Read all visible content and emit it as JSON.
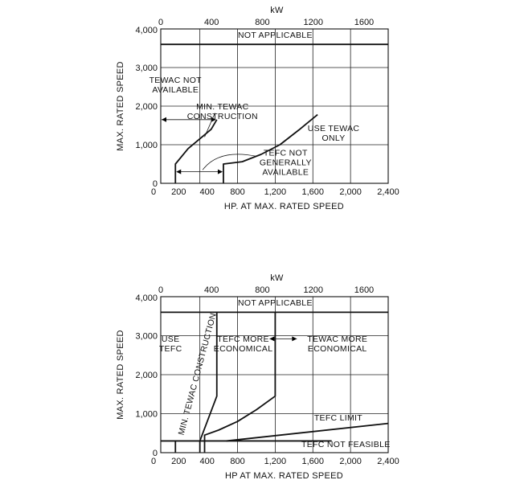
{
  "chart_data": [
    {
      "type": "line",
      "xlabel": "HP. AT MAX. RATED SPEED",
      "ylabel": "MAX. RATED SPEED",
      "x2label": "kW",
      "xlim": [
        0,
        2400
      ],
      "ylim": [
        0,
        4000
      ],
      "x2lim": [
        0,
        1790
      ],
      "x_ticks": [
        {
          "value": 0,
          "label": "0"
        },
        {
          "value": 200,
          "label": "200"
        },
        {
          "value": 400,
          "label": "400"
        },
        {
          "value": 800,
          "label": "800"
        },
        {
          "value": 1200,
          "label": "1,200"
        },
        {
          "value": 1600,
          "label": "1,600"
        },
        {
          "value": 2000,
          "label": "2,000"
        },
        {
          "value": 2400,
          "label": "2,400"
        }
      ],
      "y_ticks": [
        {
          "value": 0,
          "label": "0"
        },
        {
          "value": 1000,
          "label": "1,000"
        },
        {
          "value": 2000,
          "label": "2,000"
        },
        {
          "value": 3000,
          "label": "3,000"
        },
        {
          "value": 4000,
          "label": "4,000"
        }
      ],
      "x2_ticks": [
        {
          "value": 0,
          "label": "0"
        },
        {
          "value": 400,
          "label": "400"
        },
        {
          "value": 800,
          "label": "800"
        },
        {
          "value": 1200,
          "label": "1200"
        },
        {
          "value": 1600,
          "label": "1600"
        }
      ],
      "grid": true,
      "series": [
        {
          "x": [
            150,
            150,
            280,
            520,
            580
          ],
          "y": [
            0,
            500,
            900,
            1400,
            1650
          ]
        },
        {
          "x": [
            650,
            650,
            850,
            1050,
            1250,
            1450,
            1650
          ],
          "y": [
            0,
            500,
            560,
            750,
            1000,
            1380,
            1780
          ]
        },
        {
          "x": [
            0,
            2400
          ],
          "y": [
            3600,
            3600
          ]
        }
      ],
      "annotations": [
        {
          "text": [
            "NOT APPLICABLE"
          ],
          "x": 1200,
          "y": 3770
        },
        {
          "text": [
            "TEWAC NOT",
            "AVAILABLE"
          ],
          "x": 150,
          "y": 2600
        },
        {
          "text": [
            "MIN. TEWAC",
            "CONSTRUCTION"
          ],
          "x": 640,
          "y": 1920
        },
        {
          "text": [
            "USE TEWAC",
            "ONLY"
          ],
          "x": 1820,
          "y": 1350
        },
        {
          "text": [
            "TEFC NOT",
            "GENERALLY",
            "AVAILABLE"
          ],
          "x": 1310,
          "y": 720
        }
      ]
    },
    {
      "type": "line",
      "xlabel": "HP AT MAX. RATED SPEED",
      "ylabel": "MAX. RATED SPEED",
      "x2label": "kW",
      "xlim": [
        0,
        2400
      ],
      "ylim": [
        0,
        4000
      ],
      "x2lim": [
        0,
        1790
      ],
      "x_ticks": [
        {
          "value": 0,
          "label": "0"
        },
        {
          "value": 200,
          "label": "200"
        },
        {
          "value": 400,
          "label": "400"
        },
        {
          "value": 800,
          "label": "800"
        },
        {
          "value": 1200,
          "label": "1,200"
        },
        {
          "value": 1600,
          "label": "1,600"
        },
        {
          "value": 2000,
          "label": "2,000"
        },
        {
          "value": 2400,
          "label": "2,400"
        }
      ],
      "y_ticks": [
        {
          "value": 0,
          "label": "0"
        },
        {
          "value": 1000,
          "label": "1,000"
        },
        {
          "value": 2000,
          "label": "2,000"
        },
        {
          "value": 3000,
          "label": "3,000"
        },
        {
          "value": 4000,
          "label": "4,000"
        }
      ],
      "x2_ticks": [
        {
          "value": 0,
          "label": "0"
        },
        {
          "value": 400,
          "label": "400"
        },
        {
          "value": 800,
          "label": "800"
        },
        {
          "value": 1200,
          "label": "1200"
        },
        {
          "value": 1600,
          "label": "1600"
        }
      ],
      "grid": true,
      "series": [
        {
          "x": [
            150,
            150
          ],
          "y": [
            0,
            300
          ]
        },
        {
          "x": [
            0,
            1800
          ],
          "y": [
            300,
            300
          ]
        },
        {
          "x": [
            400,
            400,
            580,
            580
          ],
          "y": [
            0,
            300,
            1450,
            3600
          ]
        },
        {
          "x": [
            450,
            450,
            600,
            800,
            1000,
            1200,
            1200,
            1200
          ],
          "y": [
            0,
            450,
            580,
            800,
            1100,
            1450,
            1650,
            3600
          ]
        },
        {
          "x": [
            680,
            2400
          ],
          "y": [
            300,
            750
          ]
        },
        {
          "x": [
            0,
            2400
          ],
          "y": [
            3600,
            3600
          ]
        }
      ],
      "annotations": [
        {
          "text": [
            "NOT APPLICABLE"
          ],
          "x": 1200,
          "y": 3770
        },
        {
          "text": [
            "USE",
            "TEFC"
          ],
          "x": 100,
          "y": 2850
        },
        {
          "text": [
            "MIN. TEWAC CONSTRUCTION"
          ],
          "x": 400,
          "y": 2000,
          "rotation": -75
        },
        {
          "text": [
            "TEFC MORE",
            "ECONOMICAL"
          ],
          "x": 860,
          "y": 2850
        },
        {
          "text": [
            "TEWAC MORE",
            "ECONOMICAL"
          ],
          "x": 1860,
          "y": 2850
        },
        {
          "text": [
            "TEFC LIMIT"
          ],
          "x": 1870,
          "y": 820
        },
        {
          "text": [
            "TEFC NOT FEASIBLE"
          ],
          "x": 1950,
          "y": 140
        }
      ]
    }
  ]
}
